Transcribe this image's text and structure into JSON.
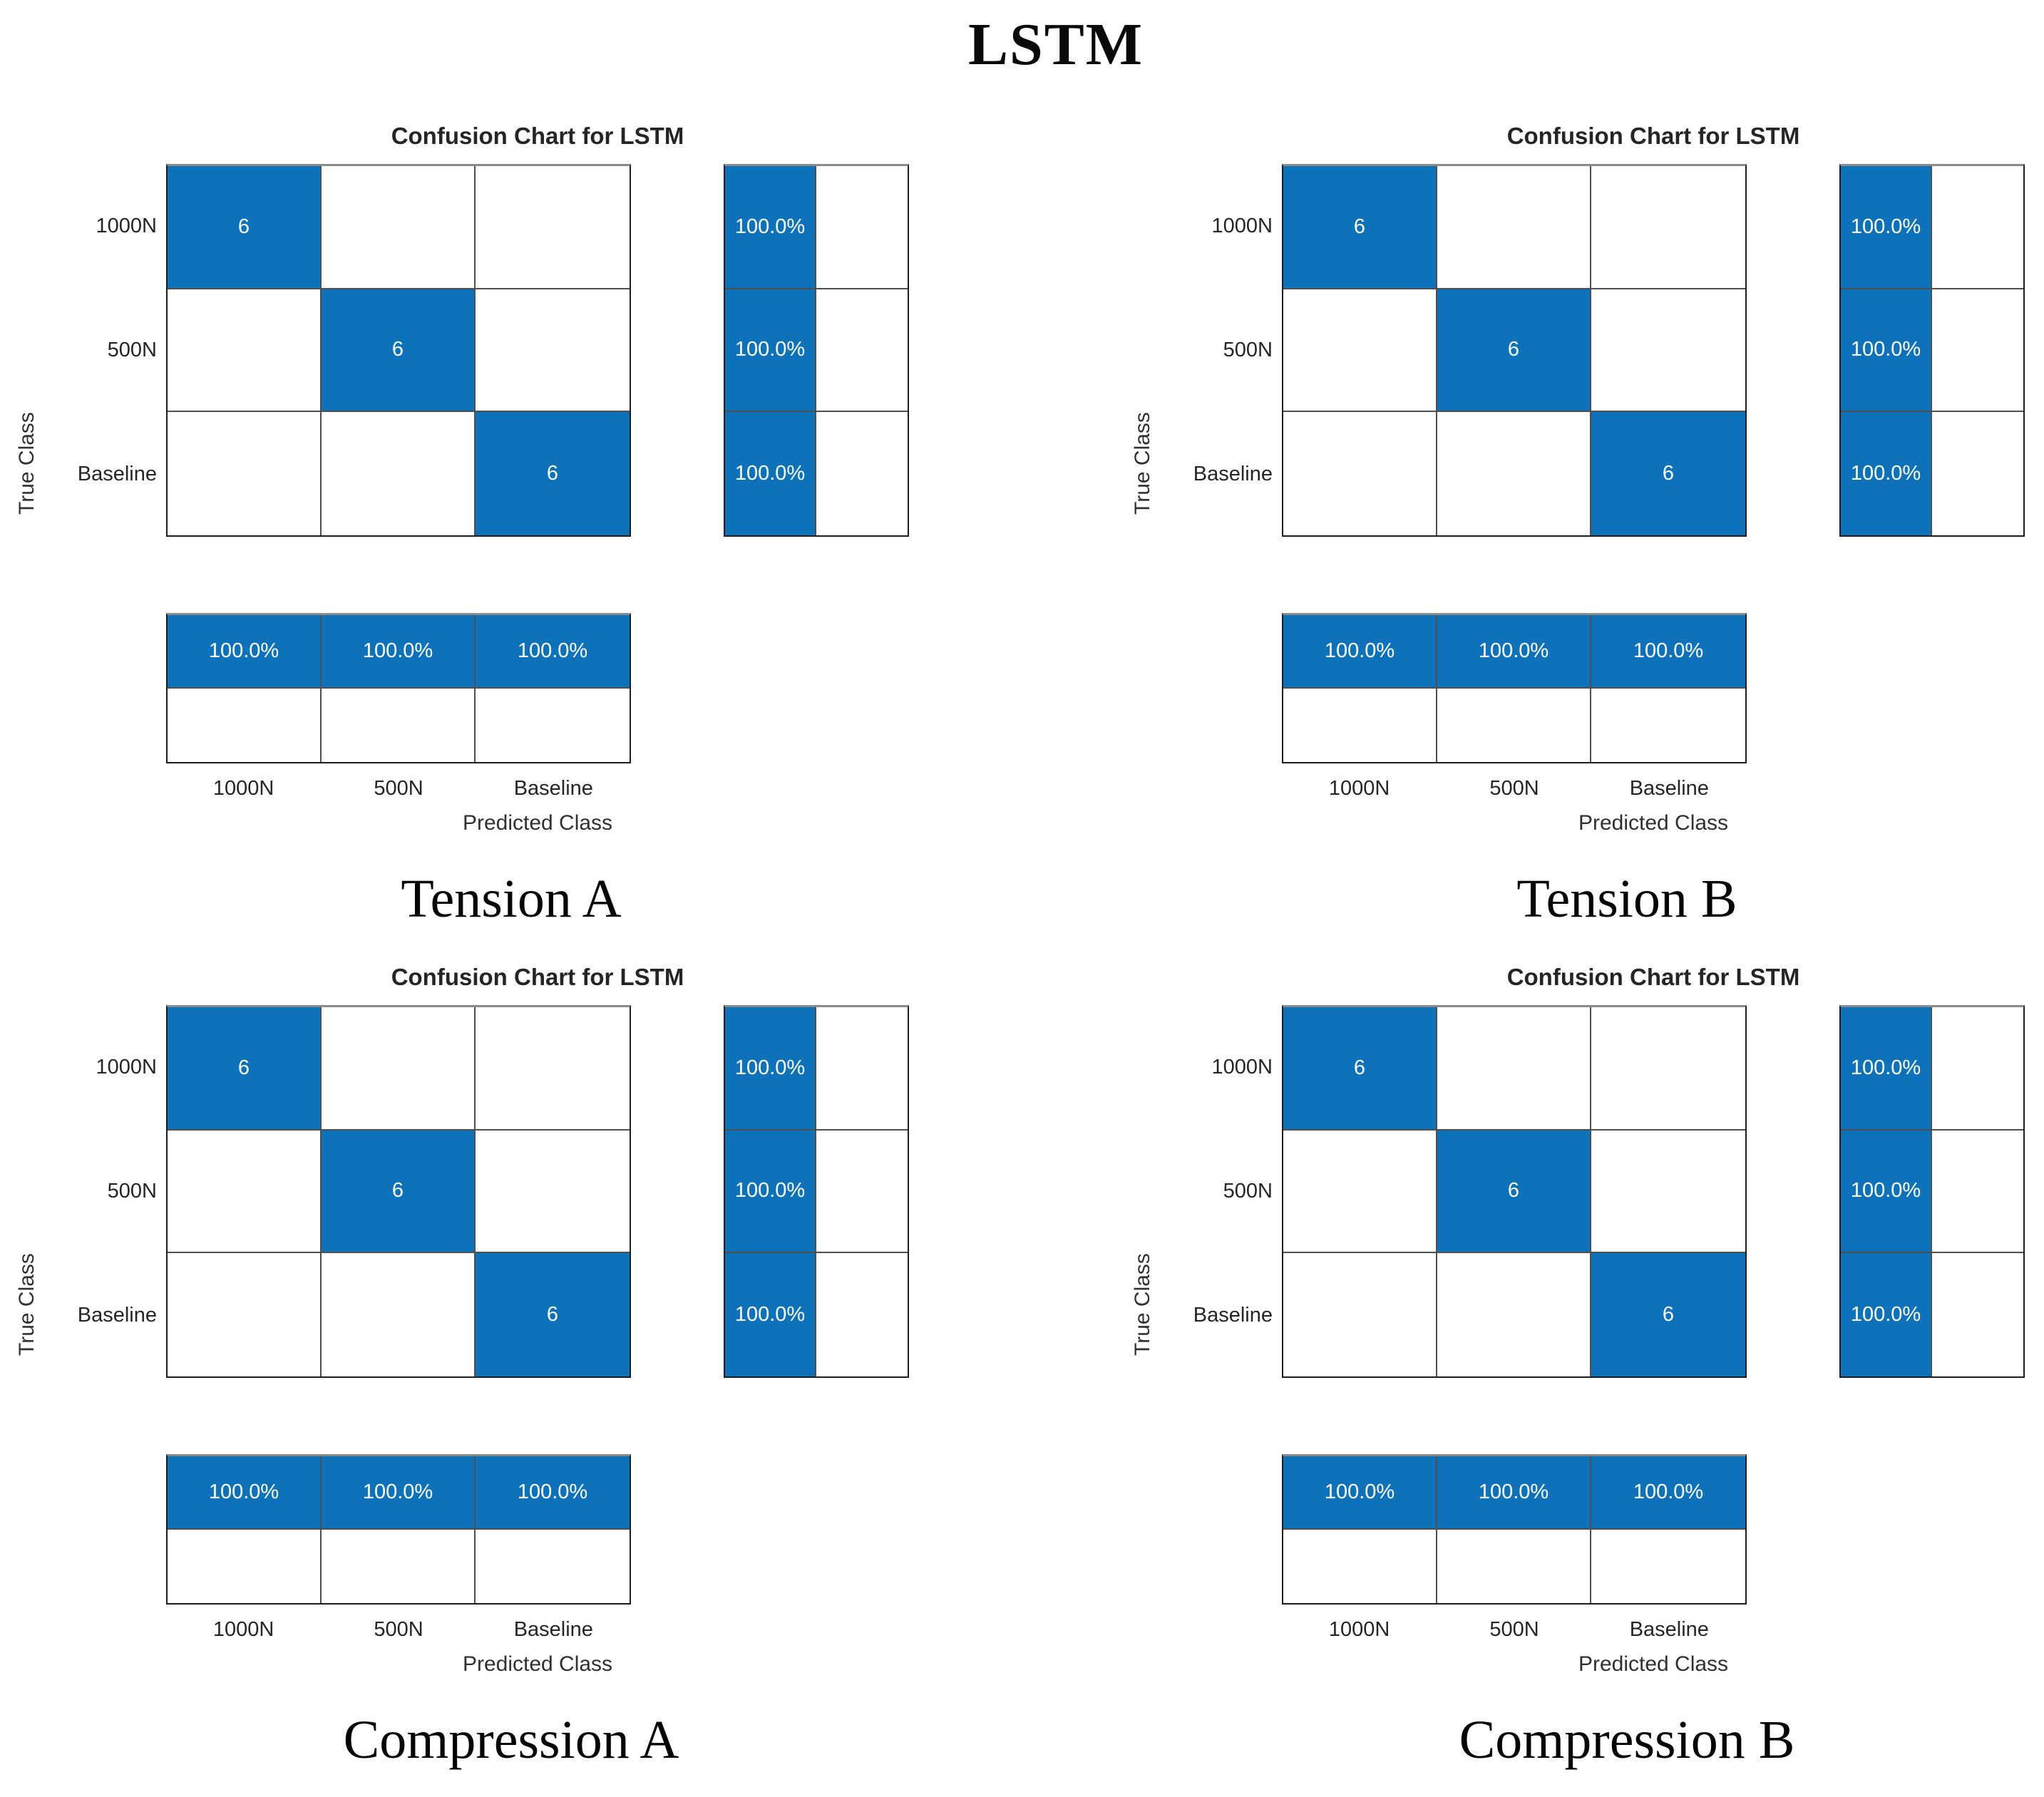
{
  "figure_title": "LSTM",
  "colors": {
    "diagonal_fill": "#0d72b9",
    "cell_text": "#ffffff",
    "label_text": "#252525",
    "grid_line": "#4f4f4f",
    "border": "#1d1d1d"
  },
  "chart_data": [
    {
      "type": "heatmap",
      "title": "Confusion Chart for LSTM",
      "caption": "Tension A",
      "xlabel": "Predicted Class",
      "ylabel": "True Class",
      "classes": [
        "1000N",
        "500N",
        "Baseline"
      ],
      "matrix": [
        [
          6,
          0,
          0
        ],
        [
          0,
          6,
          0
        ],
        [
          0,
          0,
          6
        ]
      ],
      "row_summary_pct": [
        100.0,
        100.0,
        100.0
      ],
      "col_summary_pct": [
        100.0,
        100.0,
        100.0
      ]
    },
    {
      "type": "heatmap",
      "title": "Confusion Chart for LSTM",
      "caption": "Tension B",
      "xlabel": "Predicted Class",
      "ylabel": "True Class",
      "classes": [
        "1000N",
        "500N",
        "Baseline"
      ],
      "matrix": [
        [
          6,
          0,
          0
        ],
        [
          0,
          6,
          0
        ],
        [
          0,
          0,
          6
        ]
      ],
      "row_summary_pct": [
        100.0,
        100.0,
        100.0
      ],
      "col_summary_pct": [
        100.0,
        100.0,
        100.0
      ]
    },
    {
      "type": "heatmap",
      "title": "Confusion Chart for LSTM",
      "caption": "Compression A",
      "xlabel": "Predicted Class",
      "ylabel": "True Class",
      "classes": [
        "1000N",
        "500N",
        "Baseline"
      ],
      "matrix": [
        [
          6,
          0,
          0
        ],
        [
          0,
          6,
          0
        ],
        [
          0,
          0,
          6
        ]
      ],
      "row_summary_pct": [
        100.0,
        100.0,
        100.0
      ],
      "col_summary_pct": [
        100.0,
        100.0,
        100.0
      ]
    },
    {
      "type": "heatmap",
      "title": "Confusion Chart for LSTM",
      "caption": "Compression B",
      "xlabel": "Predicted Class",
      "ylabel": "True Class",
      "classes": [
        "1000N",
        "500N",
        "Baseline"
      ],
      "matrix": [
        [
          6,
          0,
          0
        ],
        [
          0,
          6,
          0
        ],
        [
          0,
          0,
          6
        ]
      ],
      "row_summary_pct": [
        100.0,
        100.0,
        100.0
      ],
      "col_summary_pct": [
        100.0,
        100.0,
        100.0
      ]
    }
  ]
}
